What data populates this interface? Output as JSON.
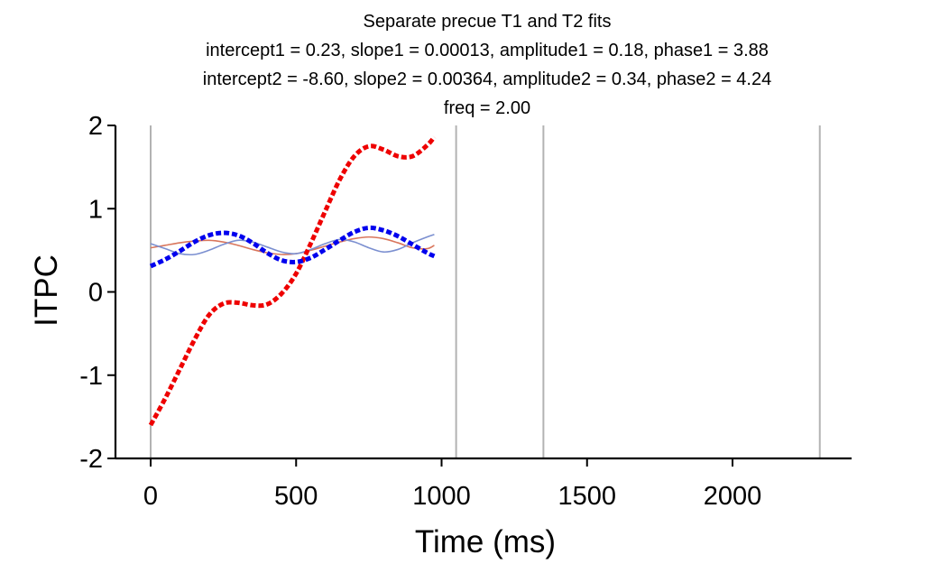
{
  "chart_data": {
    "type": "line",
    "title_lines": [
      "Separate precue T1 and T2 fits",
      "intercept1 = 0.23, slope1 = 0.00013, amplitude1 = 0.18, phase1 = 3.88",
      "intercept2 = -8.60, slope2 = 0.00364, amplitude2 = 0.34, phase2 = 4.24",
      "freq = 2.00"
    ],
    "xlabel": "Time (ms)",
    "ylabel": "ITPC",
    "xlim": [
      -120,
      2400
    ],
    "ylim": [
      -2,
      2
    ],
    "xticks": [
      0,
      500,
      1000,
      1500,
      2000
    ],
    "yticks": [
      -2,
      -1,
      0,
      1,
      2
    ],
    "xtick_labels": [
      "0",
      "500",
      "1000",
      "1500",
      "2000"
    ],
    "ytick_labels": [
      "-2",
      "-1",
      "0",
      "1",
      "2"
    ],
    "vertical_lines": [
      0,
      1050,
      1350,
      2300
    ],
    "vertical_line_color": "#b3b3b3",
    "grid": false,
    "x": [
      0,
      50,
      100,
      150,
      200,
      250,
      300,
      350,
      400,
      450,
      500,
      550,
      600,
      650,
      700,
      750,
      800,
      850,
      900,
      950,
      975
    ],
    "series": [
      {
        "color": "#ee0000",
        "dashed": true,
        "width": 5,
        "values": [
          -1.6,
          -1.28,
          -0.93,
          -0.58,
          -0.28,
          -0.14,
          -0.13,
          -0.16,
          -0.15,
          -0.02,
          0.22,
          0.58,
          0.97,
          1.35,
          1.63,
          1.75,
          1.71,
          1.63,
          1.63,
          1.76,
          1.86
        ]
      },
      {
        "color": "#0000ee",
        "dashed": true,
        "width": 5,
        "values": [
          0.31,
          0.39,
          0.49,
          0.6,
          0.68,
          0.71,
          0.68,
          0.59,
          0.47,
          0.38,
          0.36,
          0.41,
          0.51,
          0.62,
          0.72,
          0.77,
          0.74,
          0.67,
          0.57,
          0.47,
          0.43
        ]
      },
      {
        "color": "#d9765c",
        "dashed": false,
        "width": 1.6,
        "values": [
          0.53,
          0.56,
          0.59,
          0.61,
          0.62,
          0.6,
          0.56,
          0.51,
          0.47,
          0.45,
          0.46,
          0.5,
          0.55,
          0.6,
          0.64,
          0.66,
          0.64,
          0.59,
          0.53,
          0.52,
          0.56
        ]
      },
      {
        "color": "#7b8fd0",
        "dashed": false,
        "width": 1.6,
        "values": [
          0.58,
          0.52,
          0.46,
          0.45,
          0.5,
          0.57,
          0.62,
          0.6,
          0.54,
          0.48,
          0.46,
          0.51,
          0.58,
          0.63,
          0.6,
          0.53,
          0.48,
          0.51,
          0.59,
          0.66,
          0.69
        ]
      }
    ]
  }
}
